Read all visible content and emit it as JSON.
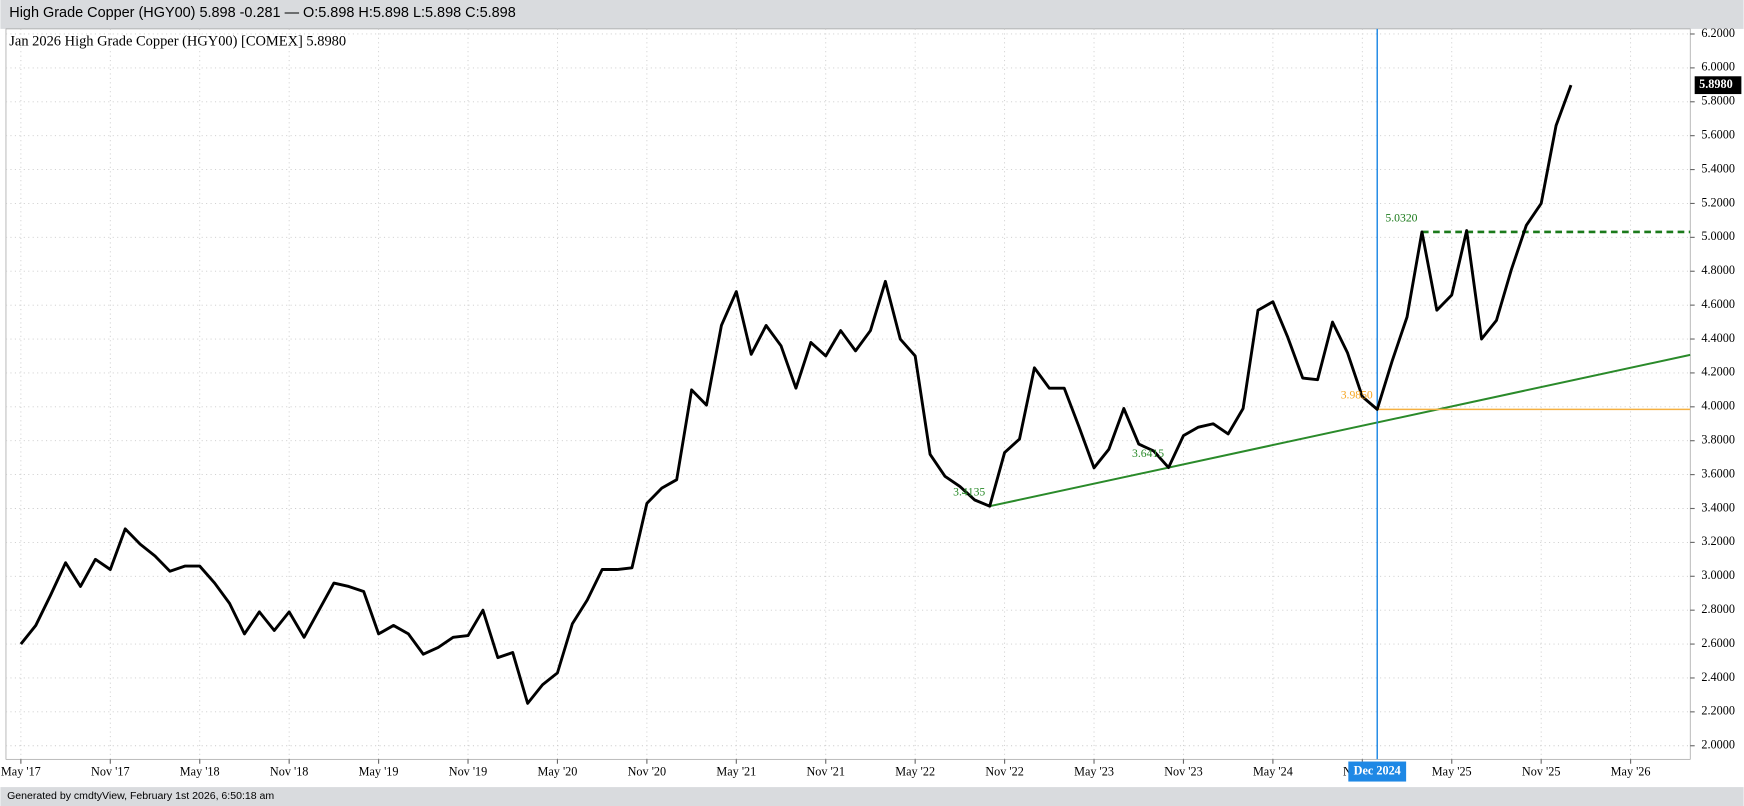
{
  "header": "High Grade Copper (HGY00) 5.898 -0.281 — O:5.898 H:5.898 L:5.898 C:5.898",
  "footer": "Generated by cmdtyView, February 1st 2026, 6:50:18 am",
  "chart_data": {
    "type": "line",
    "title": "Jan 2026 High Grade Copper (HGY00) [COMEX] 5.8980",
    "x": [
      "2017-05",
      "2017-06",
      "2017-07",
      "2017-08",
      "2017-09",
      "2017-10",
      "2017-11",
      "2017-12",
      "2018-01",
      "2018-02",
      "2018-03",
      "2018-04",
      "2018-05",
      "2018-06",
      "2018-07",
      "2018-08",
      "2018-09",
      "2018-10",
      "2018-11",
      "2018-12",
      "2019-01",
      "2019-02",
      "2019-03",
      "2019-04",
      "2019-05",
      "2019-06",
      "2019-07",
      "2019-08",
      "2019-09",
      "2019-10",
      "2019-11",
      "2019-12",
      "2020-01",
      "2020-02",
      "2020-03",
      "2020-04",
      "2020-05",
      "2020-06",
      "2020-07",
      "2020-08",
      "2020-09",
      "2020-10",
      "2020-11",
      "2020-12",
      "2021-01",
      "2021-02",
      "2021-03",
      "2021-04",
      "2021-05",
      "2021-06",
      "2021-07",
      "2021-08",
      "2021-09",
      "2021-10",
      "2021-11",
      "2021-12",
      "2022-01",
      "2022-02",
      "2022-03",
      "2022-04",
      "2022-05",
      "2022-06",
      "2022-07",
      "2022-08",
      "2022-09",
      "2022-10",
      "2022-11",
      "2022-12",
      "2023-01",
      "2023-02",
      "2023-03",
      "2023-04",
      "2023-05",
      "2023-06",
      "2023-07",
      "2023-08",
      "2023-09",
      "2023-10",
      "2023-11",
      "2023-12",
      "2024-01",
      "2024-02",
      "2024-03",
      "2024-04",
      "2024-05",
      "2024-06",
      "2024-07",
      "2024-08",
      "2024-09",
      "2024-10",
      "2024-11",
      "2024-12",
      "2025-01",
      "2025-02",
      "2025-03",
      "2025-04",
      "2025-05",
      "2025-06",
      "2025-07",
      "2025-08",
      "2025-09",
      "2025-10",
      "2025-11",
      "2025-12",
      "2026-01"
    ],
    "series": [
      {
        "name": "HGY00",
        "color": "#000000",
        "values": [
          2.6,
          2.71,
          2.89,
          3.08,
          2.94,
          3.1,
          3.04,
          3.28,
          3.19,
          3.12,
          3.03,
          3.06,
          3.06,
          2.96,
          2.84,
          2.66,
          2.79,
          2.68,
          2.79,
          2.64,
          2.8,
          2.96,
          2.94,
          2.91,
          2.66,
          2.71,
          2.66,
          2.54,
          2.58,
          2.64,
          2.65,
          2.8,
          2.52,
          2.55,
          2.25,
          2.36,
          2.43,
          2.72,
          2.86,
          3.04,
          3.04,
          3.05,
          3.43,
          3.52,
          3.57,
          4.1,
          4.01,
          4.48,
          4.68,
          4.31,
          4.48,
          4.36,
          4.11,
          4.38,
          4.3,
          4.45,
          4.33,
          4.45,
          4.74,
          4.4,
          4.3,
          3.72,
          3.59,
          3.53,
          3.45,
          3.4135,
          3.73,
          3.81,
          4.23,
          4.11,
          4.11,
          3.88,
          3.64,
          3.75,
          3.99,
          3.78,
          3.74,
          3.6415,
          3.83,
          3.88,
          3.9,
          3.84,
          3.99,
          4.57,
          4.62,
          4.41,
          4.17,
          4.16,
          4.5,
          4.32,
          4.06,
          3.985,
          4.27,
          4.53,
          5.032,
          4.57,
          4.66,
          5.04,
          4.4,
          4.51,
          4.81,
          5.07,
          5.2,
          5.66,
          5.898
        ]
      }
    ],
    "xlim": [
      "2017-04",
      "2026-09"
    ],
    "xticks": [
      {
        "value": "2017-05",
        "label": "May '17"
      },
      {
        "value": "2017-11",
        "label": "Nov '17"
      },
      {
        "value": "2018-05",
        "label": "May '18"
      },
      {
        "value": "2018-11",
        "label": "Nov '18"
      },
      {
        "value": "2019-05",
        "label": "May '19"
      },
      {
        "value": "2019-11",
        "label": "Nov '19"
      },
      {
        "value": "2020-05",
        "label": "May '20"
      },
      {
        "value": "2020-11",
        "label": "Nov '20"
      },
      {
        "value": "2021-05",
        "label": "May '21"
      },
      {
        "value": "2021-11",
        "label": "Nov '21"
      },
      {
        "value": "2022-05",
        "label": "May '22"
      },
      {
        "value": "2022-11",
        "label": "Nov '22"
      },
      {
        "value": "2023-05",
        "label": "May '23"
      },
      {
        "value": "2023-11",
        "label": "Nov '23"
      },
      {
        "value": "2024-05",
        "label": "May '24"
      },
      {
        "value": "2024-11",
        "label": "Nov '24"
      },
      {
        "value": "2025-05",
        "label": "May '25"
      },
      {
        "value": "2025-11",
        "label": "Nov '25"
      },
      {
        "value": "2026-05",
        "label": "May '26"
      }
    ],
    "ylim": [
      1.92,
      6.23
    ],
    "yticks": [
      {
        "value": 2.0,
        "label": "2.0000"
      },
      {
        "value": 2.2,
        "label": "2.2000"
      },
      {
        "value": 2.4,
        "label": "2.4000"
      },
      {
        "value": 2.6,
        "label": "2.6000"
      },
      {
        "value": 2.8,
        "label": "2.8000"
      },
      {
        "value": 3.0,
        "label": "3.0000"
      },
      {
        "value": 3.2,
        "label": "3.2000"
      },
      {
        "value": 3.4,
        "label": "3.4000"
      },
      {
        "value": 3.6,
        "label": "3.6000"
      },
      {
        "value": 3.8,
        "label": "3.8000"
      },
      {
        "value": 4.0,
        "label": "4.0000"
      },
      {
        "value": 4.2,
        "label": "4.2000"
      },
      {
        "value": 4.4,
        "label": "4.4000"
      },
      {
        "value": 4.6,
        "label": "4.6000"
      },
      {
        "value": 4.8,
        "label": "4.8000"
      },
      {
        "value": 5.0,
        "label": "5.0000"
      },
      {
        "value": 5.2,
        "label": "5.2000"
      },
      {
        "value": 5.4,
        "label": "5.4000"
      },
      {
        "value": 5.6,
        "label": "5.6000"
      },
      {
        "value": 5.8,
        "label": "5.8000"
      },
      {
        "value": 6.0,
        "label": "6.0000"
      },
      {
        "value": 6.2,
        "label": "6.2000"
      }
    ],
    "grid": true,
    "trendline": {
      "from": {
        "x": "2022-10",
        "y": 3.4135
      },
      "through": {
        "x": "2023-10",
        "y": 3.6415
      },
      "color": "#2a8a2a"
    },
    "reference_lines": [
      {
        "orientation": "vertical",
        "x": "2024-12",
        "label": "Dec 2024",
        "color": "#1e88e5"
      },
      {
        "orientation": "horizontal",
        "y": 3.985,
        "from": "2024-12",
        "color": "#f5b041",
        "dashed": false
      },
      {
        "orientation": "horizontal",
        "y": 5.032,
        "from": "2025-03",
        "color": "#1b7a1b",
        "dashed": true
      }
    ],
    "point_labels": [
      {
        "x": "2022-10",
        "label": "3.4135",
        "color": "#2a8a2a"
      },
      {
        "x": "2023-10",
        "label": "3.6415",
        "color": "#2a8a2a"
      },
      {
        "x": "2024-12",
        "label": "3.9850",
        "color": "#f5a623"
      },
      {
        "x": "2025-03",
        "label": "5.0320",
        "color": "#1b7a1b"
      }
    ],
    "last_value_label": {
      "value": 5.898,
      "label": "5.8980"
    }
  }
}
